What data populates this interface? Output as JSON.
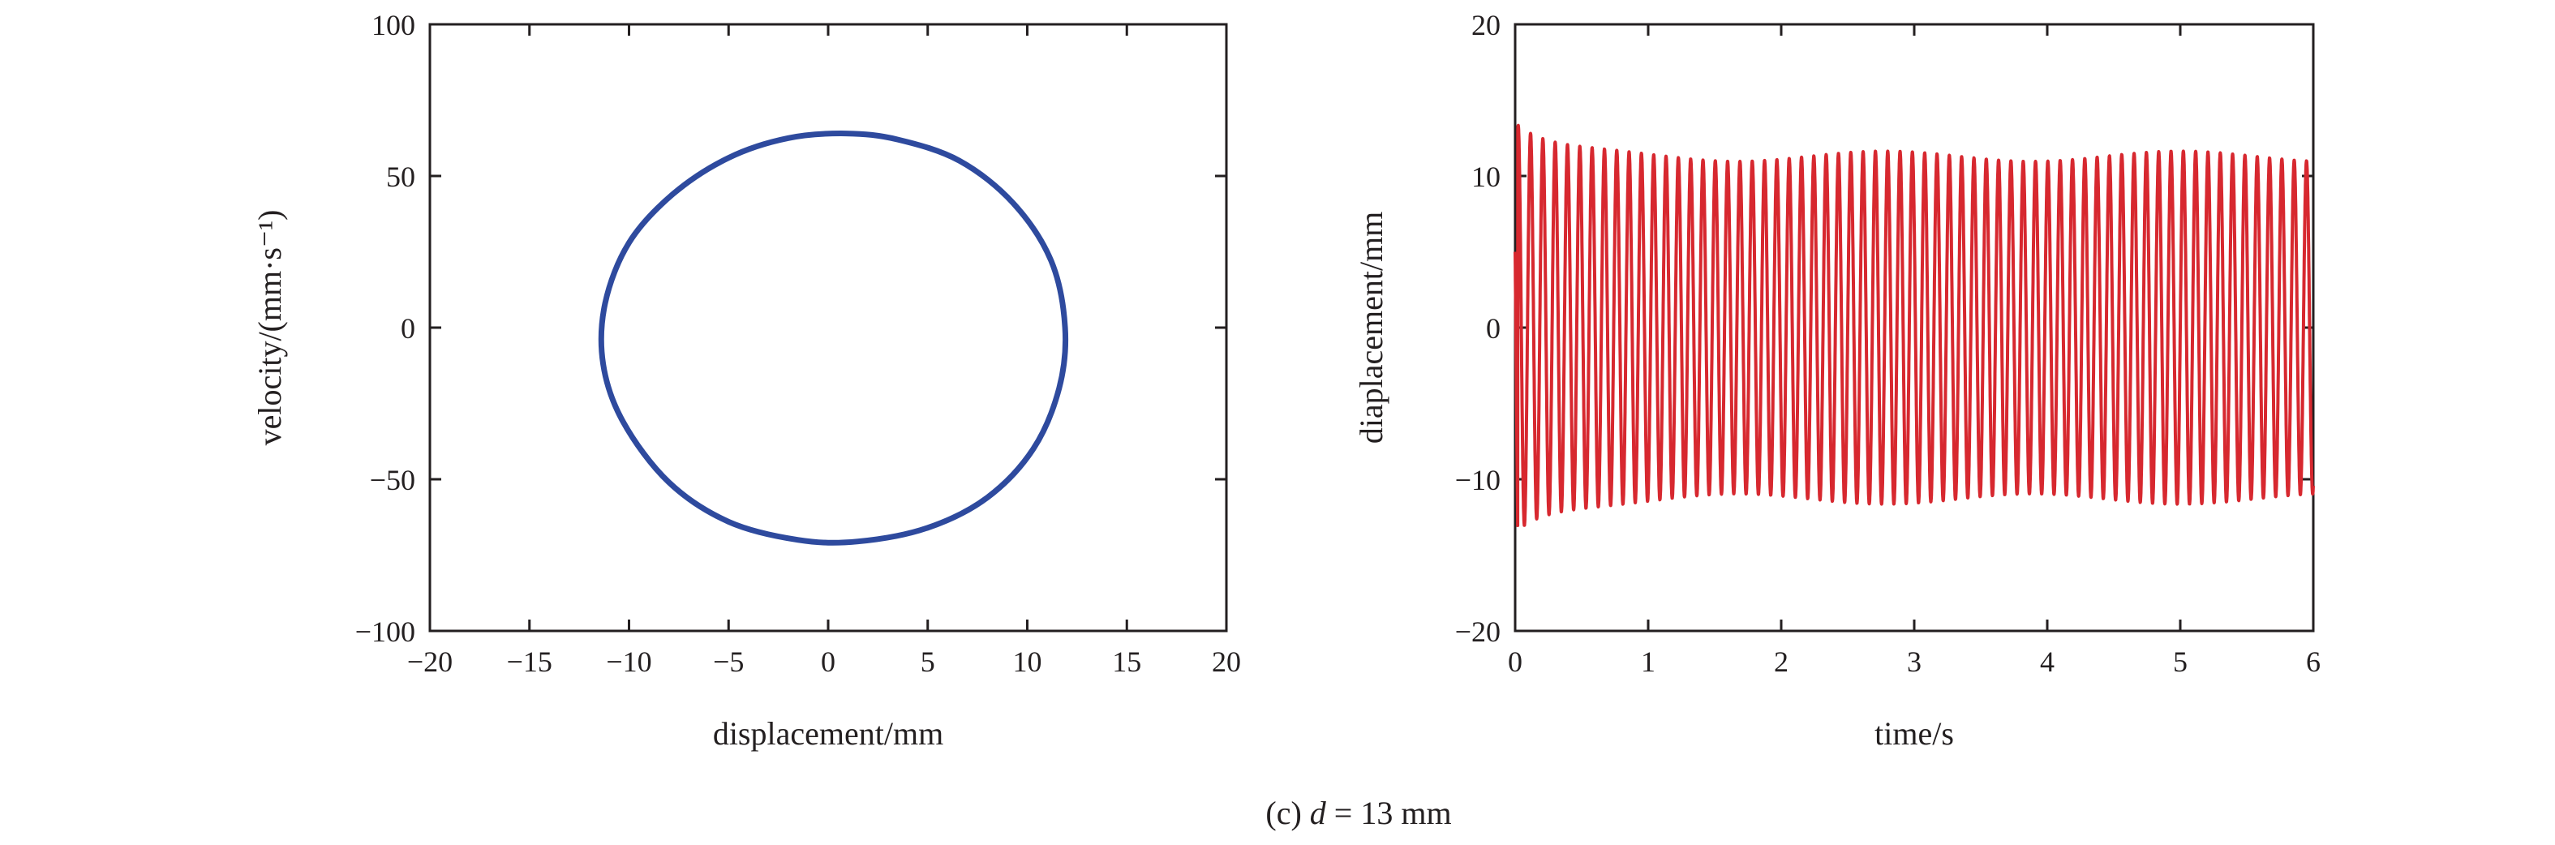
{
  "chart_data": [
    {
      "type": "line",
      "kind": "phase-portrait",
      "xlabel": "displacement/mm",
      "ylabel": "velocity/(mm·s⁻¹)",
      "xlim": [
        -20,
        20
      ],
      "ylim": [
        -100,
        100
      ],
      "xticks": [
        -20,
        -15,
        -10,
        -5,
        0,
        5,
        10,
        15,
        20
      ],
      "yticks": [
        -100,
        -50,
        0,
        50,
        100
      ],
      "xtick_labels": [
        "−20",
        "−15",
        "−10",
        "−5",
        "0",
        "5",
        "10",
        "15",
        "20"
      ],
      "ytick_labels": [
        "−100",
        "−50",
        "0",
        "50",
        "100"
      ],
      "grid": false,
      "color": "#2e4a9e",
      "series": [
        {
          "x": [
            0.9,
            3.5,
            6.6,
            9.3,
            11.2,
            11.9,
            11.6,
            10.3,
            8.0,
            5.0,
            1.5,
            -1.5,
            -5.0,
            -8.0,
            -10.3,
            -11.3,
            -11.2,
            -10.0,
            -7.8,
            -5.0,
            -2.0,
            0.9
          ],
          "y": [
            64.0,
            62.0,
            55.0,
            41.0,
            22.0,
            0.0,
            -20.0,
            -40.0,
            -56.0,
            -66.0,
            -70.5,
            -70.0,
            -64.0,
            -51.0,
            -31.0,
            -12.0,
            8.0,
            28.0,
            44.0,
            56.0,
            62.5,
            64.0
          ]
        }
      ]
    },
    {
      "type": "line",
      "kind": "time-history",
      "xlabel": "time/s",
      "ylabel": "diaplacement/mm",
      "xlim": [
        0,
        6
      ],
      "ylim": [
        -20,
        20
      ],
      "xticks": [
        0,
        1,
        2,
        3,
        4,
        5,
        6
      ],
      "yticks": [
        -20,
        -10,
        0,
        10,
        20
      ],
      "xtick_labels": [
        "0",
        "1",
        "2",
        "3",
        "4",
        "5",
        "6"
      ],
      "ytick_labels": [
        "−20",
        "−10",
        "0",
        "10",
        "20"
      ],
      "grid": false,
      "color": "#d7282f",
      "oscillation": {
        "frequency_hz": 10.8,
        "steady_amplitude_mm": 11.3,
        "initial_peak_mm": 12.3,
        "initial_trough_mm": -14.0,
        "transient_decay_s": 0.25
      }
    }
  ],
  "caption": {
    "prefix": "(c) ",
    "variable": "d",
    "suffix": " = 13 mm"
  }
}
